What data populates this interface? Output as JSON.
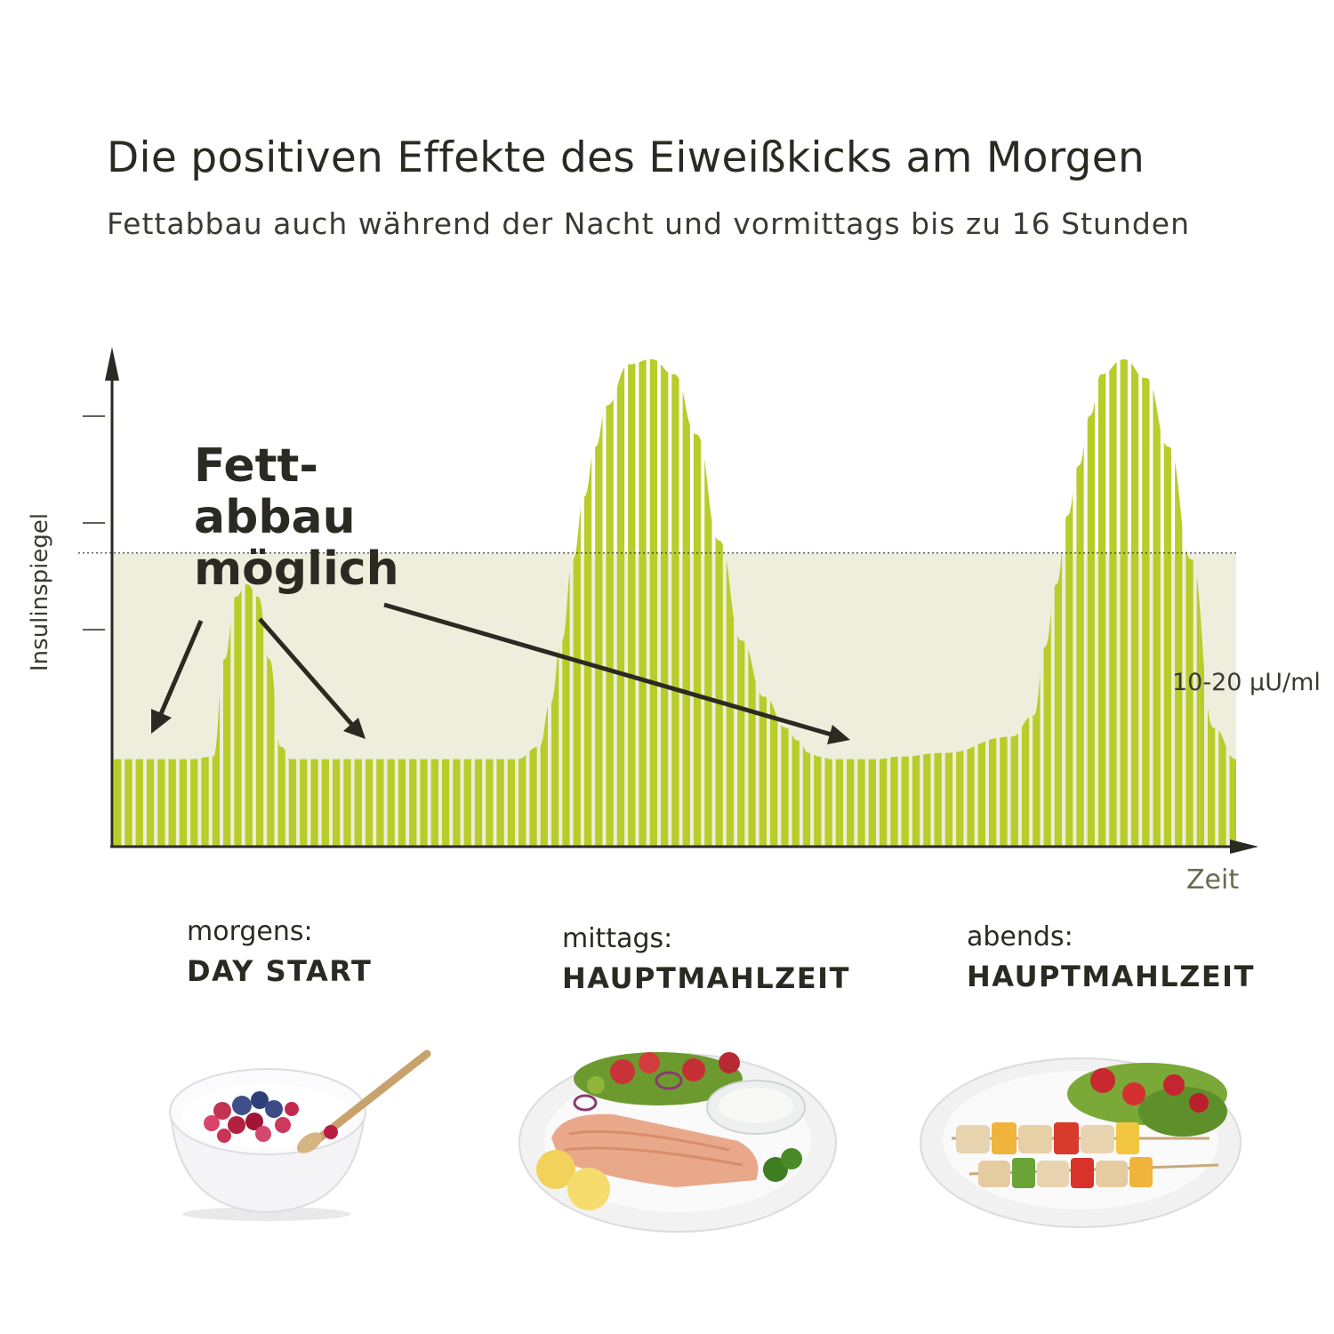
{
  "header": {
    "title": "Die positiven Effekte des Eiweißkicks am Morgen",
    "subtitle": "Fettabbau auch während der Nacht und vormittags bis zu 16 Stunden"
  },
  "chart_data": {
    "type": "area",
    "ylabel": "Insulinspiegel",
    "xlabel": "Zeit",
    "threshold": {
      "label": "10-20 µU/ml",
      "value": 2.35
    },
    "ylim": [
      0,
      4
    ],
    "xlim": [
      0,
      100
    ],
    "x": [
      0,
      7,
      9,
      10,
      11,
      12,
      13,
      14,
      15,
      16,
      18,
      28,
      36,
      38,
      39,
      40,
      41,
      42,
      43,
      44,
      46,
      48,
      50,
      52,
      54,
      56,
      58,
      60,
      61,
      62,
      63,
      64,
      65,
      66,
      67,
      68,
      70,
      74,
      80,
      82,
      83,
      84,
      85,
      86,
      87,
      88,
      90,
      92,
      94,
      96,
      98,
      100
    ],
    "values": [
      0.7,
      0.7,
      0.72,
      1.5,
      2.0,
      2.1,
      2.0,
      1.5,
      0.8,
      0.7,
      0.7,
      0.7,
      0.7,
      0.8,
      1.15,
      1.65,
      2.3,
      2.8,
      3.2,
      3.53,
      3.86,
      3.9,
      3.78,
      3.3,
      2.45,
      1.65,
      1.2,
      0.95,
      0.85,
      0.75,
      0.72,
      0.7,
      0.7,
      0.7,
      0.7,
      0.7,
      0.72,
      0.75,
      0.88,
      1.05,
      1.6,
      2.1,
      2.65,
      3.05,
      3.45,
      3.78,
      3.9,
      3.75,
      3.2,
      2.3,
      0.95,
      0.7
    ],
    "color": "#b8cc2a",
    "threshold_fill": "#edefdc"
  },
  "callout": {
    "lines": [
      "Fett-",
      "abbau",
      "möglich"
    ]
  },
  "meals": [
    {
      "when": "morgens:",
      "what": "DAY START"
    },
    {
      "when": "mittags:",
      "what": "HAUPTMAHLZEIT"
    },
    {
      "when": "abends:",
      "what": "HAUPTMAHLZEIT"
    }
  ],
  "colors": {
    "text": "#2b2a22",
    "accent": "#b8cc2a"
  }
}
